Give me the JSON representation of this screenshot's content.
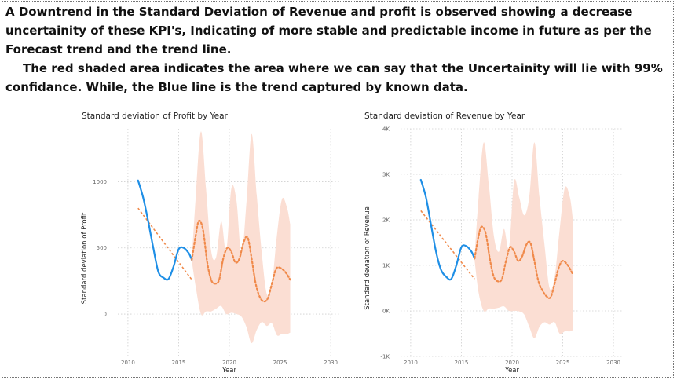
{
  "narrative": {
    "line1": "A Downtrend in the Standard Deviation of Revenue and profit is observed showing a decrease uncertainity of these KPI's, Indicating of more stable and predictable income in future as per the Forecast trend and the trend line.",
    "line2": "The red shaded area indicates the area where we can say that the Uncertainity will lie with 99% confidance. While, the Blue line is the trend captured by known data."
  },
  "colors": {
    "actual": "#1f8fe6",
    "forecast": "#f08a4b",
    "band": "#fbded3",
    "trend": "#f08a4b"
  },
  "chart_data": [
    {
      "type": "line",
      "title": "Standard deviation of Profit by Year",
      "xlabel": "Year",
      "ylabel": "Standard deviation of Profit",
      "xlim": [
        2009,
        2031
      ],
      "ylim": [
        -320,
        1400
      ],
      "x_ticks": [
        2010,
        2015,
        2020,
        2025,
        2030
      ],
      "y_ticks": [
        0,
        500,
        1000
      ],
      "y_tick_labels": [
        "0",
        "500",
        "1000"
      ],
      "grid": true,
      "series": [
        {
          "role": "actual",
          "x": [
            2011,
            2011.5,
            2012,
            2012.5,
            2013,
            2013.5,
            2014,
            2014.5,
            2015,
            2015.5,
            2016,
            2016.3
          ],
          "y": [
            1010,
            880,
            700,
            500,
            320,
            275,
            265,
            360,
            490,
            500,
            460,
            410
          ]
        },
        {
          "role": "forecast",
          "x": [
            2016.3,
            2016.7,
            2017,
            2017.4,
            2017.8,
            2018.2,
            2018.6,
            2019,
            2019.4,
            2019.8,
            2020.2,
            2020.6,
            2021,
            2021.4,
            2021.8,
            2022.2,
            2022.6,
            2023,
            2023.4,
            2023.8,
            2024.2,
            2024.6,
            2025,
            2025.5,
            2026
          ],
          "y": [
            410,
            600,
            705,
            640,
            400,
            260,
            230,
            260,
            420,
            500,
            470,
            390,
            420,
            540,
            580,
            420,
            230,
            130,
            95,
            120,
            230,
            340,
            350,
            320,
            260
          ]
        }
      ],
      "band": {
        "x": [
          2016.3,
          2016.7,
          2017.2,
          2017.7,
          2018.2,
          2018.7,
          2019.2,
          2019.7,
          2020.2,
          2020.7,
          2021.2,
          2021.7,
          2022.2,
          2022.7,
          2023.2,
          2023.7,
          2024.2,
          2024.7,
          2025.2,
          2025.7,
          2026
        ],
        "upper": [
          420,
          900,
          1380,
          950,
          480,
          430,
          700,
          480,
          950,
          860,
          450,
          850,
          1360,
          900,
          460,
          150,
          230,
          600,
          870,
          800,
          680
        ],
        "lower": [
          400,
          200,
          0,
          20,
          20,
          40,
          60,
          0,
          10,
          0,
          -20,
          -100,
          -220,
          -120,
          -60,
          -90,
          -70,
          -160,
          -150,
          -150,
          -140
        ]
      },
      "trend_line": {
        "x": [
          2011,
          2016.3
        ],
        "y": [
          800,
          260
        ]
      }
    },
    {
      "type": "line",
      "title": "Standard deviation of Revenue by Year",
      "xlabel": "Year",
      "ylabel": "Standard deviation of Revenue",
      "xlim": [
        2009,
        2031
      ],
      "ylim": [
        -1000,
        4000
      ],
      "x_ticks": [
        2010,
        2015,
        2020,
        2025,
        2030
      ],
      "y_ticks": [
        -1000,
        0,
        1000,
        2000,
        3000,
        4000
      ],
      "y_tick_labels": [
        "-1K",
        "0K",
        "1K",
        "2K",
        "3K",
        "4K"
      ],
      "grid": true,
      "series": [
        {
          "role": "actual",
          "x": [
            2011,
            2011.5,
            2012,
            2012.5,
            2013,
            2013.5,
            2014,
            2014.5,
            2015,
            2015.5,
            2016,
            2016.3
          ],
          "y": [
            2880,
            2500,
            1900,
            1300,
            900,
            750,
            700,
            1000,
            1400,
            1420,
            1300,
            1150
          ]
        },
        {
          "role": "forecast",
          "x": [
            2016.3,
            2016.7,
            2017,
            2017.4,
            2017.8,
            2018.2,
            2018.6,
            2019,
            2019.4,
            2019.8,
            2020.2,
            2020.6,
            2021,
            2021.4,
            2021.8,
            2022.2,
            2022.6,
            2023,
            2023.4,
            2023.8,
            2024.2,
            2024.6,
            2025,
            2025.5,
            2026
          ],
          "y": [
            1150,
            1650,
            1850,
            1700,
            1150,
            750,
            650,
            700,
            1100,
            1400,
            1300,
            1100,
            1200,
            1450,
            1500,
            1100,
            650,
            450,
            320,
            300,
            600,
            950,
            1100,
            1000,
            800
          ]
        }
      ],
      "band": {
        "x": [
          2016.3,
          2016.7,
          2017.2,
          2017.7,
          2018.2,
          2018.7,
          2019.2,
          2019.7,
          2020.2,
          2020.7,
          2021.2,
          2021.7,
          2022.2,
          2022.7,
          2023.2,
          2023.7,
          2024.2,
          2024.7,
          2025.2,
          2025.7,
          2026
        ],
        "upper": [
          1180,
          2500,
          3700,
          2800,
          1650,
          1300,
          1800,
          1400,
          2850,
          2500,
          2100,
          2500,
          3700,
          2500,
          1450,
          500,
          750,
          1800,
          2700,
          2500,
          2000
        ],
        "lower": [
          1120,
          400,
          0,
          50,
          50,
          70,
          100,
          0,
          0,
          -10,
          -80,
          -350,
          -600,
          -350,
          -250,
          -300,
          -250,
          -500,
          -450,
          -450,
          -420
        ]
      },
      "trend_line": {
        "x": [
          2011,
          2016.3
        ],
        "y": [
          2200,
          700
        ]
      }
    }
  ]
}
